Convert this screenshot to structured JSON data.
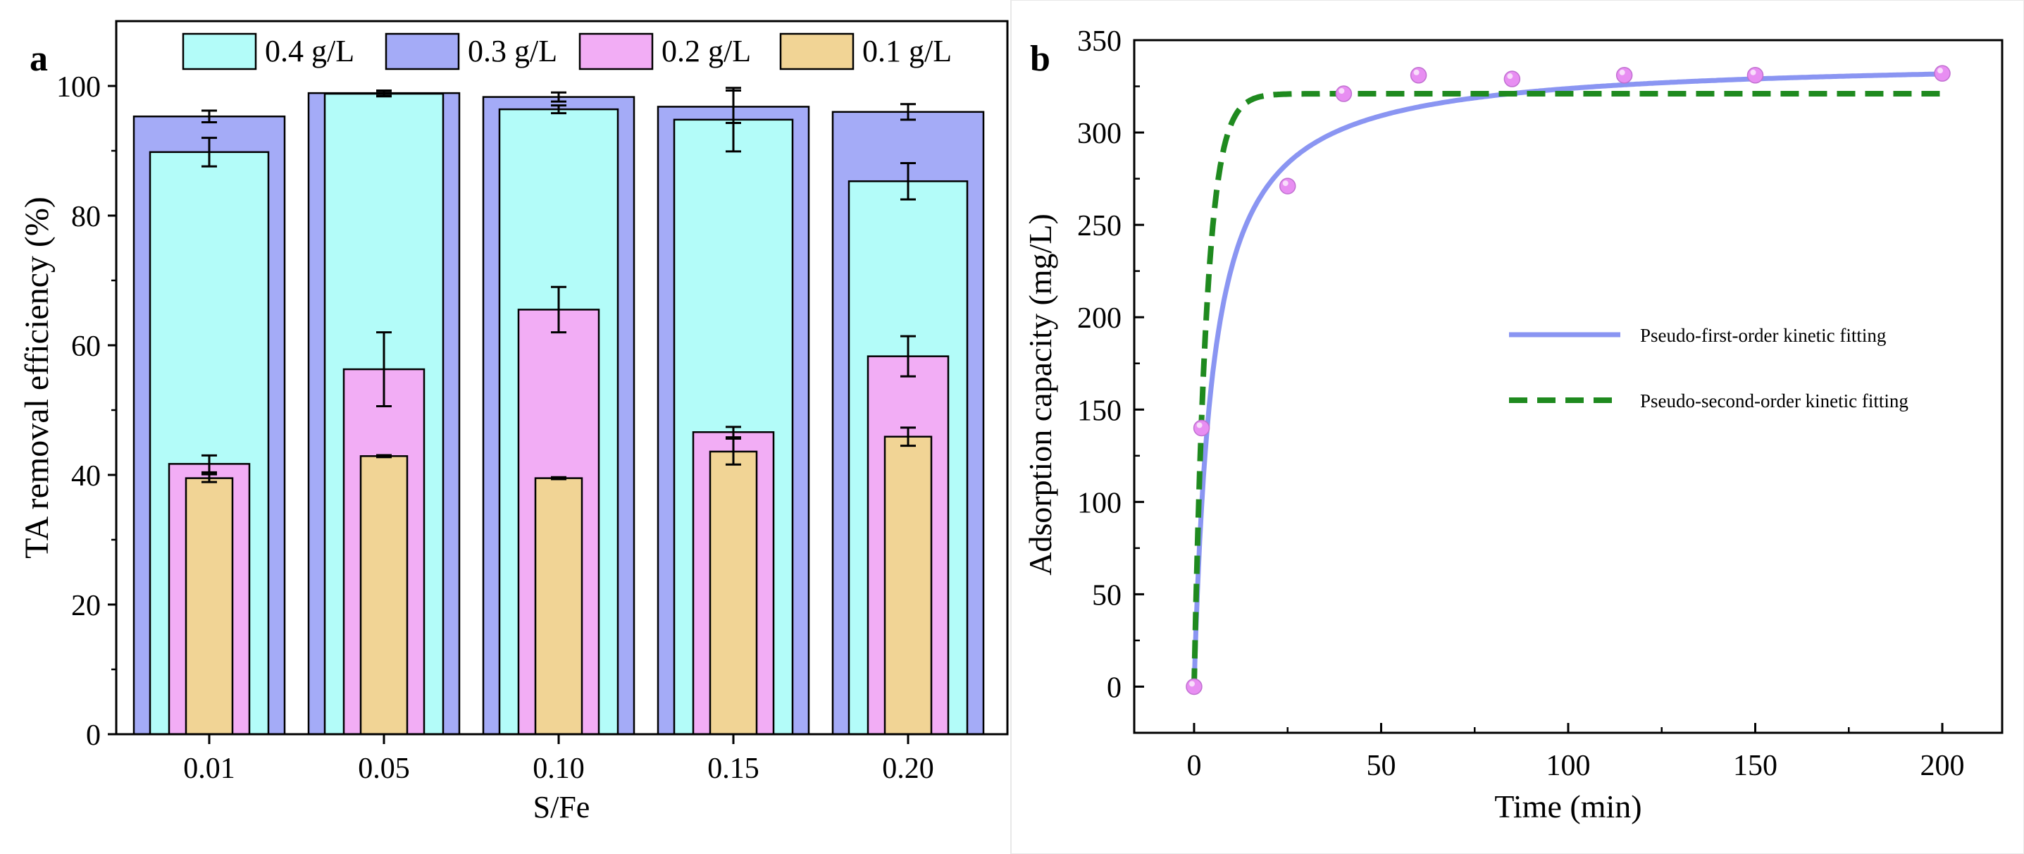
{
  "chart_data": [
    {
      "panel_label": "a",
      "type": "bar",
      "xlabel": "S/Fe",
      "ylabel": "TA removal efficiency (%)",
      "ylim": [
        0,
        110
      ],
      "yticks": [
        0,
        20,
        40,
        60,
        80,
        100
      ],
      "categories": [
        "0.01",
        "0.05",
        "0.10",
        "0.15",
        "0.20"
      ],
      "series": [
        {
          "name": "0.3 g/L",
          "color": "#a4abf7",
          "values": [
            95.3,
            98.9,
            98.3,
            96.8,
            96.0
          ],
          "errors": [
            0.9,
            0.4,
            0.7,
            2.5,
            1.2
          ]
        },
        {
          "name": "0.4 g/L",
          "color": "#b3fcf9",
          "values": [
            89.8,
            98.8,
            96.4,
            94.8,
            85.3
          ],
          "errors": [
            2.2,
            0.4,
            0.6,
            4.9,
            2.8
          ]
        },
        {
          "name": "0.2 g/L",
          "color": "#f2adf5",
          "values": [
            41.7,
            56.3,
            65.5,
            46.6,
            58.3
          ],
          "errors": [
            1.3,
            5.7,
            3.5,
            0.8,
            3.1
          ]
        },
        {
          "name": "0.1 g/L",
          "color": "#f1d495",
          "values": [
            39.5,
            42.9,
            39.5,
            43.6,
            45.9
          ],
          "errors": [
            0.6,
            0.15,
            0.15,
            2.0,
            1.4
          ]
        }
      ],
      "legend": [
        "0.4 g/L",
        "0.3 g/L",
        "0.2 g/L",
        "0.1 g/L"
      ],
      "legend_position": "top"
    },
    {
      "panel_label": "b",
      "type": "scatter",
      "xlabel": "Time (min)",
      "ylabel": "Adsorption capacity (mg/L)",
      "xlim": [
        -16,
        216
      ],
      "ylim": [
        -25,
        350
      ],
      "xticks": [
        0,
        50,
        100,
        150,
        200
      ],
      "yticks": [
        0,
        50,
        100,
        150,
        200,
        250,
        300,
        350
      ],
      "points": {
        "x": [
          0,
          2,
          25,
          40,
          60,
          85,
          115,
          150,
          200
        ],
        "y": [
          0,
          140,
          271,
          321,
          331,
          329,
          331,
          331,
          332
        ],
        "color": "#e88ef2"
      },
      "fits": [
        {
          "name": "Pseudo-first-order kinetic fitting",
          "style": "solid",
          "color": "#8a95f2",
          "model": "hyperbolic",
          "qe": 340,
          "k": 5
        },
        {
          "name": "Pseudo-second-order kinetic fitting",
          "style": "dashed",
          "color": "#1f8a1f",
          "model": "exponential",
          "qe": 321,
          "k": 0.3
        }
      ],
      "legend_position": "center-right"
    }
  ]
}
